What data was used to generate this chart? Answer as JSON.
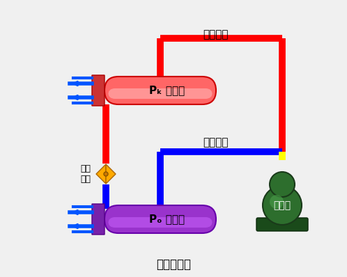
{
  "bg_color": "#f0f0f0",
  "title_bottom": "压缩式制冷",
  "label_high": "高压部分",
  "label_low": "低压部分",
  "label_condenser": "Pₖ 冷凝器",
  "label_evaporator": "Pₒ 蒸发器",
  "label_compressor": "压缩机",
  "label_valve": "节流\n机构",
  "red": "#ff0000",
  "blue": "#0000ff",
  "condenser_color1": "#ff6666",
  "condenser_color2": "#ffaaaa",
  "evap_color1": "#9933cc",
  "evap_color2": "#cc66ff",
  "compressor_color1": "#2d6e2d",
  "compressor_color2": "#4a9e4a",
  "valve_color": "#ffaa00",
  "yellow": "#ffff00"
}
